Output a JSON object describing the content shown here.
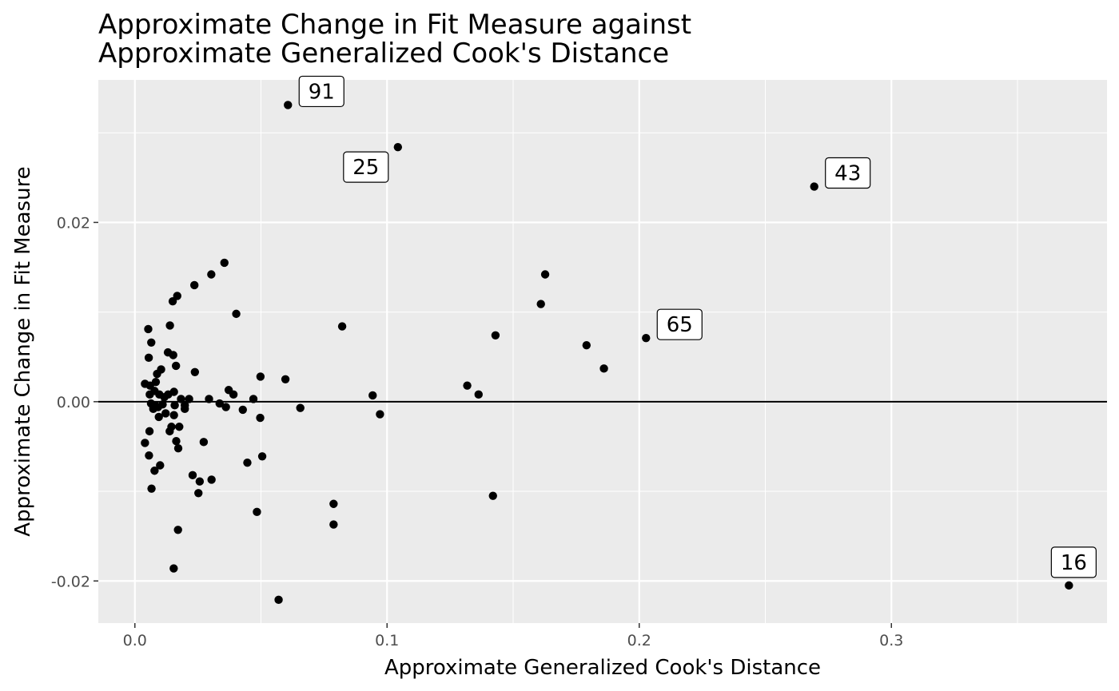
{
  "chart_data": {
    "type": "scatter",
    "title": [
      "Approximate Change in Fit Measure against",
      "Approximate Generalized Cook's Distance"
    ],
    "xlabel": "Approximate Generalized Cook's Distance",
    "ylabel": "Approximate Change in Fit Measure",
    "xlim": [
      -0.0145,
      0.3855
    ],
    "ylim": [
      -0.0247,
      0.0359
    ],
    "x_ticks": [
      0.0,
      0.1,
      0.2,
      0.3
    ],
    "x_tick_labels": [
      "0.0",
      "0.1",
      "0.2",
      "0.3"
    ],
    "y_ticks": [
      -0.02,
      0.0,
      0.02
    ],
    "y_tick_labels": [
      "-0.02",
      "0.00",
      "0.02"
    ],
    "grid": true,
    "reference_line_y": 0,
    "colors": {
      "panel": "#ebebeb",
      "grid_major": "#ffffff",
      "point": "#000000",
      "reference_line": "#000000"
    },
    "points": [
      [
        0.0607,
        0.0331
      ],
      [
        0.1043,
        0.0284
      ],
      [
        0.2694,
        0.024
      ],
      [
        0.2027,
        0.0071
      ],
      [
        0.3704,
        -0.0205
      ],
      [
        0.0355,
        0.0155
      ],
      [
        0.0303,
        0.0142
      ],
      [
        0.0236,
        0.013
      ],
      [
        0.0168,
        0.0118
      ],
      [
        0.015,
        0.0112
      ],
      [
        0.0139,
        0.0085
      ],
      [
        0.0402,
        0.0098
      ],
      [
        0.0822,
        0.0084
      ],
      [
        0.1627,
        0.0142
      ],
      [
        0.161,
        0.0109
      ],
      [
        0.143,
        0.0074
      ],
      [
        0.1791,
        0.0063
      ],
      [
        0.186,
        0.0037
      ],
      [
        0.1318,
        0.0018
      ],
      [
        0.1363,
        0.0008
      ],
      [
        0.0943,
        0.0007
      ],
      [
        0.0972,
        -0.0014
      ],
      [
        0.0597,
        0.0025
      ],
      [
        0.0498,
        0.0028
      ],
      [
        0.0656,
        -0.0007
      ],
      [
        0.0497,
        -0.0018
      ],
      [
        0.0505,
        -0.0061
      ],
      [
        0.0446,
        -0.0068
      ],
      [
        0.0484,
        -0.0123
      ],
      [
        0.0788,
        -0.0114
      ],
      [
        0.0788,
        -0.0137
      ],
      [
        0.142,
        -0.0105
      ],
      [
        0.057,
        -0.0221
      ],
      [
        0.0053,
        0.0081
      ],
      [
        0.0055,
        0.0049
      ],
      [
        0.0065,
        0.0066
      ],
      [
        0.0104,
        0.0036
      ],
      [
        0.0131,
        0.0055
      ],
      [
        0.0152,
        0.0052
      ],
      [
        0.0163,
        0.004
      ],
      [
        0.0238,
        0.0033
      ],
      [
        0.004,
        0.002
      ],
      [
        0.006,
        0.0018
      ],
      [
        0.0083,
        0.0022
      ],
      [
        0.0088,
        0.0031
      ],
      [
        0.0059,
        0.0008
      ],
      [
        0.0078,
        0.0012
      ],
      [
        0.0097,
        0.0008
      ],
      [
        0.0117,
        0.0005
      ],
      [
        0.0132,
        0.0008
      ],
      [
        0.0155,
        0.0011
      ],
      [
        0.0183,
        0.0003
      ],
      [
        0.0215,
        0.0003
      ],
      [
        0.0294,
        0.0003
      ],
      [
        0.0372,
        0.0013
      ],
      [
        0.0391,
        0.0008
      ],
      [
        0.047,
        0.0003
      ],
      [
        0.0064,
        -0.0002
      ],
      [
        0.008,
        -0.0004
      ],
      [
        0.0092,
        -0.0006
      ],
      [
        0.011,
        -0.0003
      ],
      [
        0.0158,
        -0.0004
      ],
      [
        0.0198,
        -0.0004
      ],
      [
        0.0336,
        -0.0002
      ],
      [
        0.0361,
        -0.0006
      ],
      [
        0.0428,
        -0.0009
      ],
      [
        0.0073,
        -0.0008
      ],
      [
        0.0095,
        -0.0017
      ],
      [
        0.0122,
        -0.0013
      ],
      [
        0.0155,
        -0.0015
      ],
      [
        0.0198,
        -0.0008
      ],
      [
        0.0176,
        -0.0028
      ],
      [
        0.0138,
        -0.0033
      ],
      [
        0.0145,
        -0.0028
      ],
      [
        0.0058,
        -0.0033
      ],
      [
        0.004,
        -0.0046
      ],
      [
        0.0164,
        -0.0044
      ],
      [
        0.0273,
        -0.0045
      ],
      [
        0.0172,
        -0.0052
      ],
      [
        0.0056,
        -0.006
      ],
      [
        0.01,
        -0.0071
      ],
      [
        0.0078,
        -0.0077
      ],
      [
        0.0229,
        -0.0082
      ],
      [
        0.0257,
        -0.0089
      ],
      [
        0.0304,
        -0.0087
      ],
      [
        0.0066,
        -0.0097
      ],
      [
        0.0252,
        -0.0102
      ],
      [
        0.0171,
        -0.0143
      ],
      [
        0.0154,
        -0.0186
      ]
    ],
    "labels": [
      {
        "text": "91",
        "x": 0.0607,
        "y": 0.0331,
        "side": "right"
      },
      {
        "text": "25",
        "x": 0.1043,
        "y": 0.0284,
        "side": "left"
      },
      {
        "text": "43",
        "x": 0.2694,
        "y": 0.024,
        "side": "right"
      },
      {
        "text": "65",
        "x": 0.2027,
        "y": 0.0071,
        "side": "right"
      },
      {
        "text": "16",
        "x": 0.3704,
        "y": -0.0205,
        "side": "above"
      }
    ]
  }
}
